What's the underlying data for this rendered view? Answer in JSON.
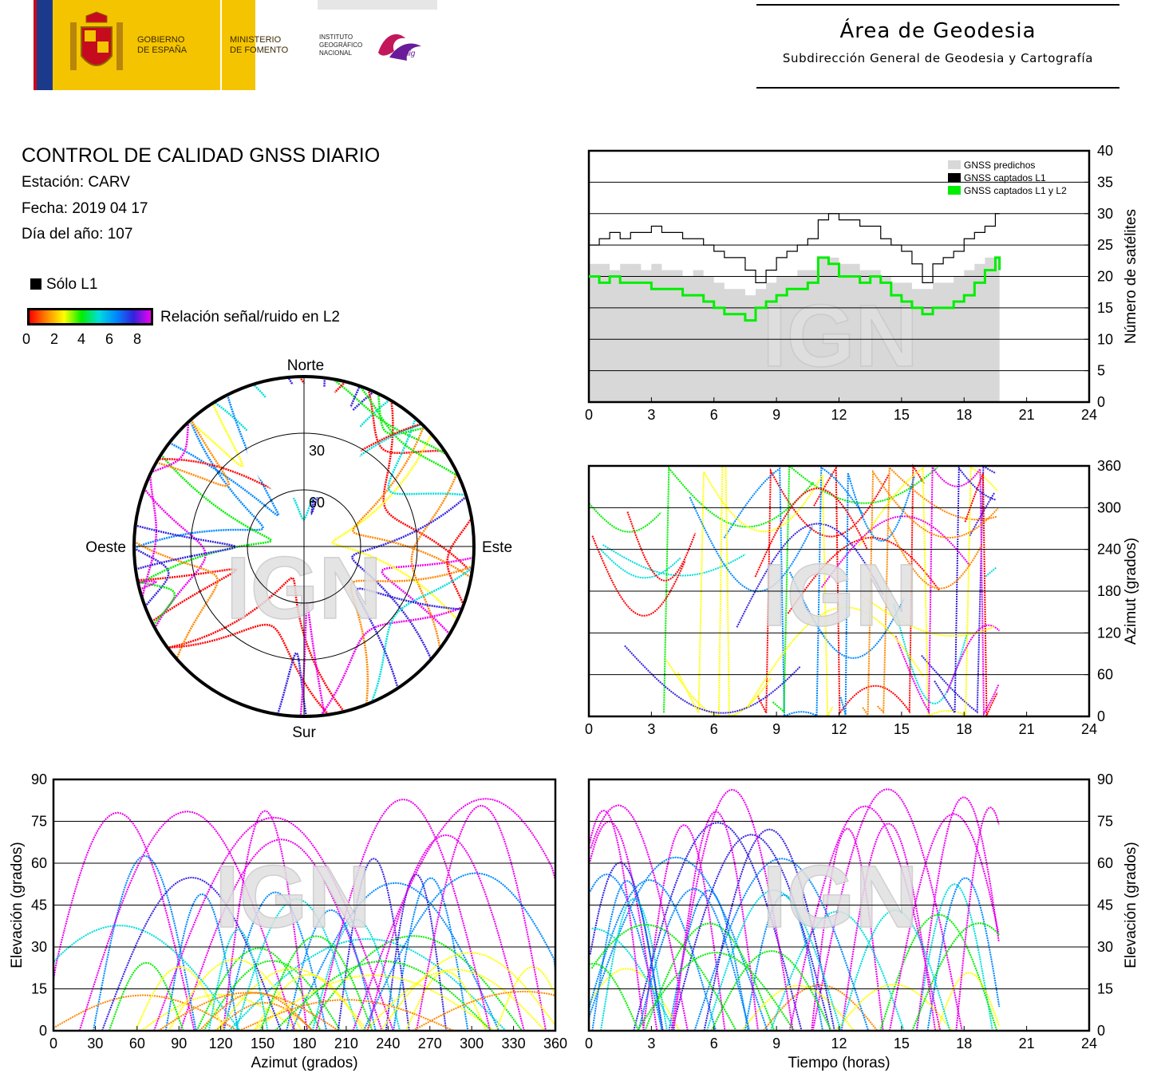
{
  "header": {
    "gov_line1": "GOBIERNO",
    "gov_line2": "DE ESPAÑA",
    "min_line1": "MINISTERIO",
    "min_line2": "DE FOMENTO",
    "inst_line1": "INSTITUTO",
    "inst_line2": "GEOGRÁFICO",
    "inst_line3": "NACIONAL",
    "cnig": "cnig",
    "area_title": "Área de Geodesia",
    "area_subtitle": "Subdirección General de Geodesia y Cartografía"
  },
  "info": {
    "title": "CONTROL DE CALIDAD GNSS DIARIO",
    "station": "Estación: CARV",
    "date": "Fecha: 2019 04 17",
    "doy": "Día del año: 107",
    "legend_l1": "Sólo L1",
    "legend_snr": "Relación señal/ruido en L2",
    "snr_ticks": [
      "0",
      "2",
      "4",
      "6",
      "8"
    ]
  },
  "colors": {
    "predicted": "#d8d8d8",
    "l1": "#000000",
    "l1l2": "#00ee00",
    "snr_scale": [
      "#ff0000",
      "#ff8800",
      "#ffff00",
      "#00ee00",
      "#00dddd",
      "#0088ff",
      "#3322dd",
      "#ee00ee"
    ]
  },
  "watermark": "IGN",
  "chart_data": [
    {
      "type": "line",
      "name": "satellite-count",
      "xlim": [
        0,
        24
      ],
      "ylim": [
        0,
        40
      ],
      "xticks": [
        "0",
        "3",
        "6",
        "9",
        "12",
        "15",
        "18",
        "21",
        "24"
      ],
      "yticks": [
        "0",
        "5",
        "10",
        "15",
        "20",
        "25",
        "30",
        "35",
        "40"
      ],
      "ylabel": "Número de satélites",
      "legend": [
        "GNSS predichos",
        "GNSS captados L1",
        "GNSS captados L1 y L2"
      ],
      "legend_position": "top-right",
      "x": [
        0,
        0.5,
        1,
        1.5,
        2,
        2.5,
        3,
        3.5,
        4,
        4.5,
        5,
        5.5,
        6,
        6.5,
        7,
        7.5,
        8,
        8.5,
        9,
        9.5,
        10,
        10.5,
        11,
        11.5,
        12,
        12.5,
        13,
        13.5,
        14,
        14.5,
        15,
        15.5,
        16,
        16.5,
        17,
        17.5,
        18,
        18.5,
        19,
        19.5,
        19.7
      ],
      "series": [
        {
          "values": [
            22,
            22,
            21,
            22,
            22,
            21,
            22,
            21,
            21,
            20,
            21,
            20,
            19,
            18,
            18,
            17,
            18,
            19,
            20,
            20,
            21,
            21,
            23,
            23,
            22,
            22,
            21,
            21,
            20,
            19,
            19,
            18,
            18,
            19,
            19,
            20,
            21,
            22,
            23,
            23,
            23
          ]
        },
        {
          "values": [
            25,
            26,
            27,
            26,
            27,
            27,
            28,
            27,
            27,
            26,
            26,
            25,
            24,
            23,
            23,
            21,
            19,
            21,
            23,
            24,
            25,
            26,
            29,
            30,
            29,
            29,
            28,
            28,
            26,
            25,
            24,
            22,
            19,
            22,
            23,
            24,
            26,
            27,
            28,
            30,
            30
          ]
        },
        {
          "values": [
            20,
            19,
            20,
            19,
            19,
            19,
            18,
            18,
            18,
            17,
            17,
            16,
            15,
            14,
            14,
            13,
            15,
            16,
            17,
            18,
            18,
            19,
            23,
            22,
            20,
            20,
            19,
            20,
            19,
            17,
            16,
            15,
            14,
            15,
            15,
            16,
            17,
            19,
            21,
            23,
            21
          ]
        }
      ]
    },
    {
      "type": "scatter",
      "name": "azimuth-vs-time",
      "xlim": [
        0,
        24
      ],
      "ylim": [
        0,
        360
      ],
      "xticks": [
        "0",
        "3",
        "6",
        "9",
        "12",
        "15",
        "18",
        "21",
        "24"
      ],
      "yticks": [
        "0",
        "60",
        "120",
        "180",
        "240",
        "300",
        "360"
      ],
      "ylabel": "Azimut (grados)"
    },
    {
      "type": "scatter",
      "name": "skyplot",
      "labels": {
        "north": "Norte",
        "south": "Sur",
        "west": "Oeste",
        "east": "Este"
      },
      "rings": [
        "30",
        "60"
      ]
    },
    {
      "type": "scatter",
      "name": "elevation-vs-azimuth",
      "xlim": [
        0,
        360
      ],
      "ylim": [
        0,
        90
      ],
      "xticks": [
        "0",
        "30",
        "60",
        "90",
        "120",
        "150",
        "180",
        "210",
        "240",
        "270",
        "300",
        "330",
        "360"
      ],
      "yticks": [
        "0",
        "15",
        "30",
        "45",
        "60",
        "75",
        "90"
      ],
      "xlabel": "Azimut (grados)",
      "ylabel": "Elevación (grados)"
    },
    {
      "type": "scatter",
      "name": "elevation-vs-time",
      "xlim": [
        0,
        24
      ],
      "ylim": [
        0,
        90
      ],
      "xticks": [
        "0",
        "3",
        "6",
        "9",
        "12",
        "15",
        "18",
        "21",
        "24"
      ],
      "yticks": [
        "0",
        "15",
        "30",
        "45",
        "60",
        "75",
        "90"
      ],
      "xlabel": "Tiempo (horas)",
      "ylabel": "Elevación (grados)"
    }
  ]
}
